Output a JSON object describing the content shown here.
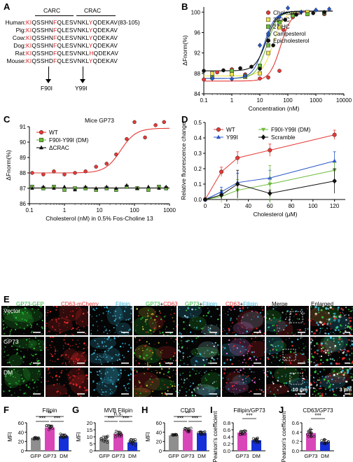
{
  "colors": {
    "red": "#e53935",
    "green": "#6dbb3a",
    "blue": "#2a56c6",
    "black": "#111111",
    "yellow": "#f2e34a",
    "navy": "#1d3f96",
    "cyan": "#38b6d9"
  },
  "panelA": {
    "label": "A",
    "carc": "CARC",
    "crac": "CRAC",
    "rows": [
      {
        "name": "Human:",
        "seq": "KIQSSHNFQLESVNKLYQDEKAV",
        "range": "(83-105)"
      },
      {
        "name": "Pig:",
        "seq": "KIQSSHNFQLESVNKLYQDEKAV",
        "range": ""
      },
      {
        "name": "Cow:",
        "seq": "KIQSSHNFQLESVNKLYQDEKAV",
        "range": ""
      },
      {
        "name": "Dog:",
        "seq": "KIQSSHNFQLESVNKLYQDEKAV",
        "range": ""
      },
      {
        "name": "Rat:",
        "seq": "KIQSSHDFQLESVNKLHQDEKAV",
        "range": ""
      },
      {
        "name": "Mouse:",
        "seq": "KIQSSHDFQLESVNKLYQDEKAV",
        "range": ""
      }
    ],
    "mut1": "F90I",
    "mut2": "Y99I"
  },
  "panelB": {
    "label": "B"
  },
  "panelC": {
    "label": "C"
  },
  "panelD": {
    "label": "D"
  },
  "panelE": {
    "label": "E",
    "titles": {
      "gfp": "GP73-GFP",
      "mcherry": "CD63-mCherry",
      "filipin": "Filipin",
      "gp73": "GP73",
      "plus": "+",
      "cd63": "CD63",
      "filipin2": "Filipin",
      "gp73b": "GP73",
      "plus2": "+",
      "filipin3": "Filipin",
      "cd63b": "CD63",
      "plus3": "+",
      "filipin4": "Filipin",
      "merge": "Merge",
      "enlarged": "Enlarged"
    },
    "rows": [
      "Vector",
      "GP73",
      "DM"
    ],
    "scale1": "10 μm",
    "scale2": "3 μm"
  },
  "panelF": {
    "label": "F"
  },
  "panelG": {
    "label": "G"
  },
  "panelH": {
    "label": "H"
  },
  "panelI": {
    "label": "I"
  },
  "panelJ": {
    "label": "J"
  },
  "chart_data": [
    {
      "id": "B",
      "type": "scatter",
      "xlabel": "Concentration (nM)",
      "ylabel": "ΔFnorm(%)",
      "xscale": "log",
      "xlim": [
        0.1,
        10000
      ],
      "ylim": [
        84,
        101
      ],
      "yticks": [
        84,
        88,
        92,
        96,
        100
      ],
      "xticks": [
        "0.1",
        "1",
        "10",
        "100",
        "1000",
        "10000"
      ],
      "legend_position": "top-right",
      "series": [
        {
          "name": "Cholesterol",
          "color": "#e53935",
          "marker": "circle",
          "mid": 55,
          "bottom": 86.5,
          "points": [
            [
              0.1,
              86.8
            ],
            [
              0.3,
              88.2
            ],
            [
              1,
              88.8
            ],
            [
              3,
              87.8
            ],
            [
              10,
              87.0
            ],
            [
              20,
              87.2
            ],
            [
              50,
              88.5
            ],
            [
              70,
              96.5
            ],
            [
              150,
              99.0
            ],
            [
              500,
              99.8
            ],
            [
              2000,
              99.6
            ]
          ]
        },
        {
          "name": "25-HC",
          "color": "#f2e34a",
          "marker": "square",
          "mid": 30,
          "bottom": 87.5,
          "points": [
            [
              0.2,
              88.0
            ],
            [
              1,
              87.8
            ],
            [
              3,
              87.3
            ],
            [
              10,
              88.0
            ],
            [
              20,
              92.0
            ],
            [
              50,
              97.0
            ],
            [
              150,
              99.4
            ],
            [
              500,
              100.0
            ],
            [
              2000,
              99.8
            ]
          ]
        },
        {
          "name": "27-HC",
          "color": "#6dbb3a",
          "marker": "square",
          "mid": 18,
          "bottom": 87.0,
          "points": [
            [
              0.2,
              87.2
            ],
            [
              1,
              88.5
            ],
            [
              3,
              87.5
            ],
            [
              10,
              89.5
            ],
            [
              20,
              93.5
            ],
            [
              50,
              98.0
            ],
            [
              150,
              99.3
            ],
            [
              500,
              99.6
            ],
            [
              2000,
              99.9
            ]
          ]
        },
        {
          "name": "Campesterol",
          "color": "#2a56c6",
          "marker": "diamond",
          "mid": 14,
          "bottom": 87.0,
          "points": [
            [
              0.2,
              87.0
            ],
            [
              1,
              86.9
            ],
            [
              3,
              87.5
            ],
            [
              10,
              93.5
            ],
            [
              20,
              95.5
            ],
            [
              50,
              99.0
            ],
            [
              100,
              100.8
            ],
            [
              300,
              100.0
            ],
            [
              1000,
              100.4
            ],
            [
              3000,
              100.6
            ]
          ]
        },
        {
          "name": "Epicholesterol",
          "color": "#111111",
          "marker": "circle",
          "mid": 17,
          "bottom": 88.5,
          "points": [
            [
              0.1,
              88.5
            ],
            [
              0.5,
              88.6
            ],
            [
              2,
              89.0
            ],
            [
              5,
              89.3
            ],
            [
              10,
              88.9
            ],
            [
              30,
              93.5
            ],
            [
              80,
              98.5
            ],
            [
              200,
              99.5
            ],
            [
              800,
              99.8
            ],
            [
              2000,
              100.0
            ]
          ]
        }
      ]
    },
    {
      "id": "C",
      "type": "scatter",
      "title": "Mice GP73",
      "xlabel": "Cholesterol (nM) in 0.5% Fos-Choline 13",
      "ylabel": "ΔFnorm(%)",
      "xscale": "log",
      "xlim": [
        0.1,
        1000
      ],
      "ylim": [
        86,
        91
      ],
      "yticks": [
        86,
        87,
        88,
        89,
        90,
        91
      ],
      "xticks": [
        "0.1",
        "1",
        "10",
        "100",
        "1000"
      ],
      "legend_position": "top-left",
      "series": [
        {
          "name": "WT",
          "color": "#e53935",
          "marker": "circle",
          "fit": true,
          "points": [
            [
              0.12,
              88.0
            ],
            [
              0.25,
              87.9
            ],
            [
              0.5,
              88.1
            ],
            [
              1,
              87.9
            ],
            [
              2,
              88.0
            ],
            [
              4,
              88.1
            ],
            [
              8,
              88.4
            ],
            [
              16,
              88.6
            ],
            [
              30,
              89.2
            ],
            [
              60,
              90.2
            ],
            [
              100,
              91.3
            ],
            [
              200,
              90.3
            ],
            [
              400,
              91.1
            ],
            [
              700,
              91.3
            ]
          ]
        },
        {
          "name": "F90I-Y99I (DM)",
          "color": "#6dbb3a",
          "marker": "square",
          "fit": false,
          "points": [
            [
              0.12,
              87.1
            ],
            [
              0.25,
              87.0
            ],
            [
              0.5,
              87.1
            ],
            [
              1,
              86.9
            ],
            [
              2,
              87.0
            ],
            [
              4,
              87.0
            ],
            [
              8,
              86.9
            ],
            [
              16,
              87.0
            ],
            [
              30,
              86.9
            ],
            [
              60,
              87.1
            ],
            [
              120,
              87.0
            ],
            [
              250,
              86.9
            ],
            [
              500,
              87.1
            ],
            [
              800,
              87.0
            ]
          ]
        },
        {
          "name": "ΔCRAC",
          "color": "#111111",
          "marker": "triangle",
          "fit": false,
          "points": [
            [
              0.12,
              87.0
            ],
            [
              0.25,
              87.1
            ],
            [
              0.5,
              87.0
            ],
            [
              1,
              87.1
            ],
            [
              2,
              86.9
            ],
            [
              4,
              87.1
            ],
            [
              8,
              87.0
            ],
            [
              16,
              87.1
            ],
            [
              30,
              87.0
            ],
            [
              60,
              87.2
            ],
            [
              120,
              87.0
            ],
            [
              250,
              87.1
            ],
            [
              500,
              87.0
            ],
            [
              800,
              87.1
            ]
          ]
        }
      ]
    },
    {
      "id": "D",
      "type": "line",
      "xlabel": "Cholesterol (μM)",
      "ylabel": "Relative fluorescence change",
      "xlim": [
        0,
        130
      ],
      "ylim": [
        0,
        0.5
      ],
      "xticks": [
        0,
        20,
        40,
        60,
        80,
        100,
        120
      ],
      "yticks": [
        0.0,
        0.1,
        0.2,
        0.3,
        0.4,
        0.5
      ],
      "legend_position": "top-left",
      "series": [
        {
          "name": "WT",
          "color": "#e53935",
          "marker": "circle",
          "points": [
            [
              0,
              0
            ],
            [
              15,
              0.18
            ],
            [
              30,
              0.27
            ],
            [
              60,
              0.32
            ],
            [
              120,
              0.42
            ]
          ],
          "err": [
            0.01,
            0.03,
            0.04,
            0.04,
            0.03
          ]
        },
        {
          "name": "Y99I",
          "color": "#2a56c6",
          "marker": "triangle",
          "points": [
            [
              0,
              0
            ],
            [
              15,
              0.05
            ],
            [
              30,
              0.11
            ],
            [
              60,
              0.14
            ],
            [
              120,
              0.25
            ]
          ],
          "err": [
            0.01,
            0.03,
            0.06,
            0.05,
            0.06
          ]
        },
        {
          "name": "F90I-Y99I (DM)",
          "color": "#6dbb3a",
          "marker": "triangledown",
          "points": [
            [
              0,
              0
            ],
            [
              15,
              0.02
            ],
            [
              30,
              0.06
            ],
            [
              60,
              0.1
            ],
            [
              120,
              0.19
            ]
          ],
          "err": [
            0.01,
            0.04,
            0.07,
            0.12,
            0.05
          ]
        },
        {
          "name": "Scramble",
          "color": "#111111",
          "marker": "diamond",
          "points": [
            [
              0,
              0
            ],
            [
              15,
              0.03
            ],
            [
              30,
              0.1
            ],
            [
              60,
              0.04
            ],
            [
              120,
              0.12
            ]
          ],
          "err": [
            0.01,
            0.03,
            0.09,
            0.02,
            0.08
          ]
        }
      ]
    },
    {
      "id": "F",
      "type": "bar",
      "title": "Filipin",
      "ylabel": "MFI",
      "categories": [
        "GFP",
        "GP73",
        "DM"
      ],
      "values": [
        27,
        50,
        31
      ],
      "errors": [
        2,
        5,
        5
      ],
      "colors": [
        "#8e8e8e",
        "#d946b8",
        "#1530d8"
      ],
      "ylim": [
        0,
        60
      ],
      "yticks": [
        0,
        20,
        40,
        60
      ],
      "significance": [
        {
          "text": "**",
          "between": [
            "GFP",
            "DM"
          ]
        },
        {
          "text": "***",
          "between": [
            "GFP",
            "GP73"
          ]
        },
        {
          "text": "***",
          "between": [
            "GP73",
            "DM"
          ]
        }
      ]
    },
    {
      "id": "G",
      "type": "bar",
      "title": "MVB Filipin",
      "ylabel": "MFI",
      "categories": [
        "GFP",
        "GP73",
        "DM"
      ],
      "values": [
        8,
        12,
        6
      ],
      "errors": [
        2.5,
        2,
        2.5
      ],
      "colors": [
        "#8e8e8e",
        "#d946b8",
        "#1530d8"
      ],
      "ylim": [
        0,
        20
      ],
      "yticks": [
        0,
        5,
        10,
        15,
        20
      ],
      "significance": [
        {
          "text": "n.s.",
          "between": [
            "GFP",
            "DM"
          ]
        },
        {
          "text": "***",
          "between": [
            "GFP",
            "GP73"
          ]
        },
        {
          "text": "***",
          "between": [
            "GP73",
            "DM"
          ]
        }
      ]
    },
    {
      "id": "H",
      "type": "bar",
      "title": "CD63",
      "ylabel": "MFI",
      "categories": [
        "GFP",
        "GP73",
        "DM"
      ],
      "values": [
        33,
        45,
        38
      ],
      "errors": [
        2,
        4,
        3
      ],
      "colors": [
        "#8e8e8e",
        "#d946b8",
        "#1530d8"
      ],
      "ylim": [
        0,
        60
      ],
      "yticks": [
        0,
        20,
        40,
        60
      ],
      "significance": [
        {
          "text": "**",
          "between": [
            "GFP",
            "DM"
          ]
        },
        {
          "text": "***",
          "between": [
            "GFP",
            "GP73"
          ]
        },
        {
          "text": "***",
          "between": [
            "GP73",
            "DM"
          ]
        }
      ]
    },
    {
      "id": "I",
      "type": "bar",
      "title": "Fillipin/GP73",
      "ylabel": "Pearson's coefficient",
      "categories": [
        "GP73",
        "DM"
      ],
      "values": [
        0.52,
        0.3
      ],
      "errors": [
        0.06,
        0.06
      ],
      "colors": [
        "#d946b8",
        "#1530d8"
      ],
      "ylim": [
        0,
        0.8
      ],
      "yticks": [
        0.0,
        0.2,
        0.4,
        0.6,
        0.8
      ],
      "significance": [
        {
          "text": "***",
          "between": [
            "GP73",
            "DM"
          ]
        }
      ]
    },
    {
      "id": "J",
      "type": "bar",
      "title": "CD63/GP73",
      "ylabel": "Pearson's coefficient",
      "categories": [
        "GP73",
        "DM"
      ],
      "values": [
        0.38,
        0.19
      ],
      "errors": [
        0.08,
        0.05
      ],
      "colors": [
        "#d946b8",
        "#1530d8"
      ],
      "ylim": [
        0,
        0.6
      ],
      "yticks": [
        0.0,
        0.2,
        0.4,
        0.6
      ],
      "significance": [
        {
          "text": "***",
          "between": [
            "GP73",
            "DM"
          ]
        }
      ]
    }
  ]
}
